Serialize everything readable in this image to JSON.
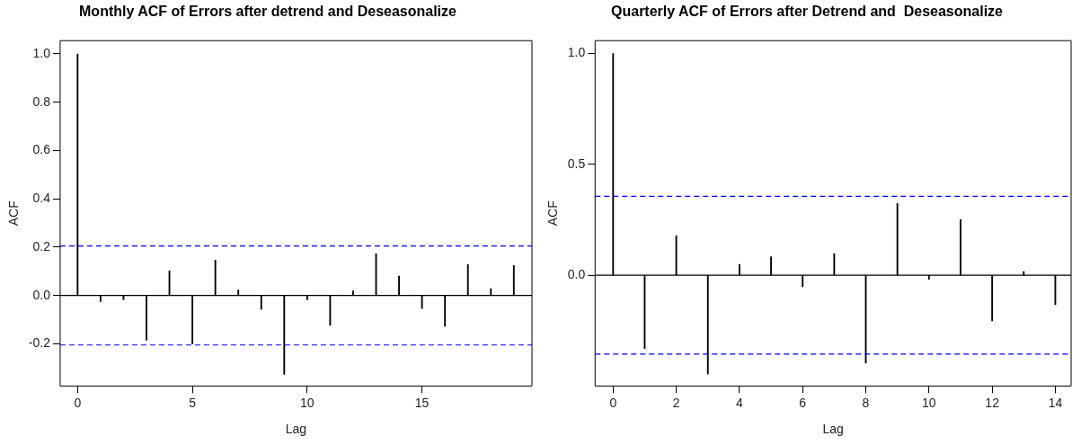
{
  "chart_data": [
    {
      "type": "bar",
      "title": "Monthly ACF of Errors after detrend and Deseasonalize",
      "xlabel": "Lag",
      "ylabel": "ACF",
      "x": [
        0,
        1,
        2,
        3,
        4,
        5,
        6,
        7,
        8,
        9,
        10,
        11,
        12,
        13,
        14,
        15,
        16,
        17,
        18,
        19
      ],
      "series": [
        {
          "color": "#000000",
          "values": [
            1,
            -0.025,
            -0.018,
            -0.185,
            0.102,
            -0.2,
            0.146,
            0.023,
            -0.058,
            -0.327,
            -0.018,
            -0.124,
            0.019,
            0.172,
            0.08,
            -0.054,
            -0.128,
            0.128,
            0.028,
            0.124
          ]
        }
      ],
      "xlim": [
        -0.76,
        19.79
      ],
      "xticks": [
        0,
        5,
        10,
        15
      ],
      "ylim": [
        -0.375,
        1.055
      ],
      "yticks": [
        {
          "value": -0.2,
          "label": "-0.2"
        },
        {
          "value": 0,
          "label": "0.0"
        },
        0.2,
        0.4,
        0.6,
        0.8,
        {
          "value": 1,
          "label": "1.0"
        }
      ],
      "ref_lines": [
        {
          "axis": "y",
          "value": 0,
          "color": "#000000",
          "line_style": "solid"
        },
        {
          "axis": "y",
          "value": 0.205,
          "color": "#0000ff",
          "line_style": "dashed"
        },
        {
          "axis": "y",
          "value": -0.205,
          "color": "#0000ff",
          "line_style": "dashed"
        }
      ],
      "grid": false,
      "legend": false
    },
    {
      "type": "bar",
      "title": "Quarterly ACF of Errors after Detrend and  Deseasonalize",
      "xlabel": "Lag",
      "ylabel": "ACF",
      "x": [
        0,
        1,
        2,
        3,
        4,
        5,
        6,
        7,
        8,
        9,
        10,
        11,
        12,
        13,
        14
      ],
      "series": [
        {
          "color": "#000000",
          "values": [
            1,
            -0.331,
            0.178,
            -0.446,
            0.049,
            0.083,
            -0.052,
            0.097,
            -0.397,
            0.323,
            -0.019,
            0.251,
            -0.206,
            0.016,
            -0.133
          ]
        }
      ],
      "xlim": [
        -0.57,
        14.5
      ],
      "xticks": [
        0,
        2,
        4,
        6,
        8,
        10,
        12,
        14
      ],
      "ylim": [
        -0.5,
        1.058
      ],
      "yticks": [
        {
          "value": 0,
          "label": "0.0"
        },
        {
          "value": 0.5,
          "label": "0.5"
        },
        {
          "value": 1,
          "label": "1.0"
        }
      ],
      "ref_lines": [
        {
          "axis": "y",
          "value": 0,
          "color": "#000000",
          "line_style": "solid"
        },
        {
          "axis": "y",
          "value": 0.356,
          "color": "#0000ff",
          "line_style": "dashed"
        },
        {
          "axis": "y",
          "value": -0.356,
          "color": "#0000ff",
          "line_style": "dashed"
        }
      ],
      "grid": false,
      "legend": false
    }
  ]
}
